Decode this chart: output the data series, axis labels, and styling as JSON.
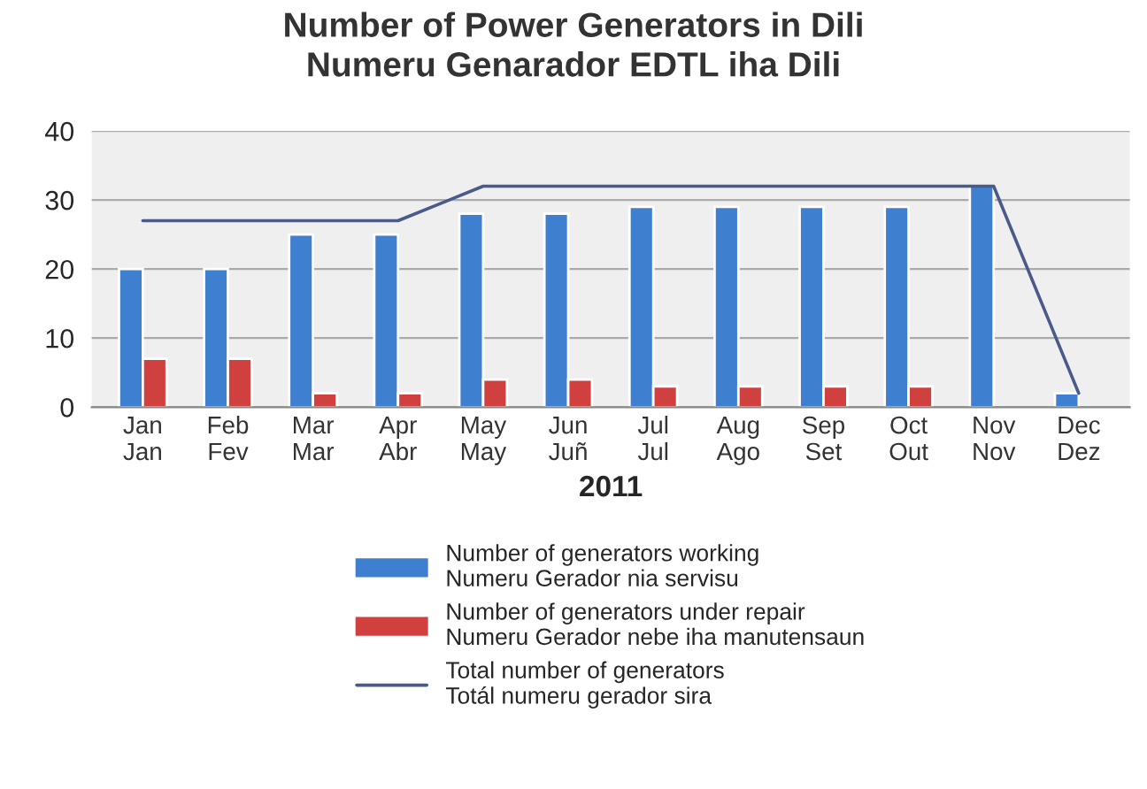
{
  "chart_data": {
    "type": "bar",
    "title": "Number of Power Generators in Dili\nNumeru Genarador EDTL iha Dili",
    "xlabel": "2011",
    "categories": [
      "Jan\nJan",
      "Feb\nFev",
      "Mar\nMar",
      "Apr\nAbr",
      "May\nMay",
      "Jun\nJuñ",
      "Jul\nJul",
      "Aug\nAgo",
      "Sep\nSet",
      "Oct\nOut",
      "Nov\nNov",
      "Dec\nDez"
    ],
    "series": [
      {
        "name": "Number of generators working\nNumeru Gerador nia servisu",
        "color": "#3f7fcf",
        "values": [
          20,
          20,
          25,
          25,
          28,
          28,
          29,
          29,
          29,
          29,
          32,
          2
        ]
      },
      {
        "name": "Number of generators under repair\nNumeru Gerador nebe iha manutensaun",
        "color": "#d0403e",
        "values": [
          7,
          7,
          2,
          2,
          4,
          4,
          3,
          3,
          3,
          3,
          null,
          null
        ]
      },
      {
        "name": "Total number of generators\nTotál numeru gerador sira",
        "type": "line",
        "color": "#4a5a8a",
        "values": [
          27,
          27,
          27,
          27,
          32,
          32,
          32,
          32,
          32,
          32,
          32,
          2
        ]
      }
    ],
    "ylim": [
      0,
      40
    ],
    "yticks": [
      0,
      10,
      20,
      30,
      40
    ],
    "grid": "y",
    "legend": "bottom"
  }
}
